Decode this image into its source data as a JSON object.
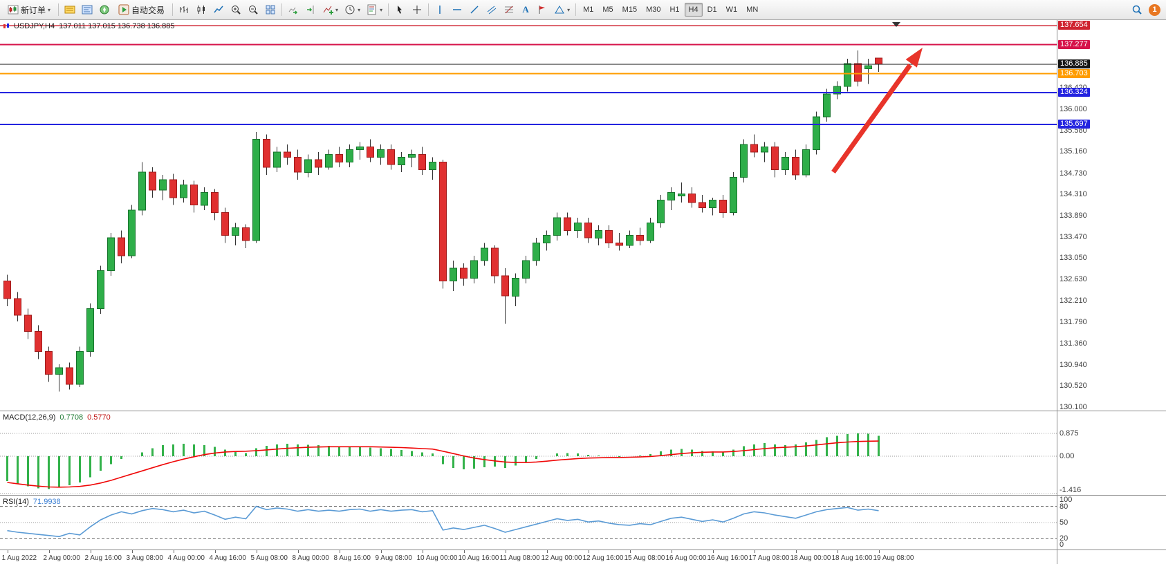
{
  "toolbar": {
    "new_order_label": "新订单",
    "auto_trading_label": "自动交易",
    "timeframes": [
      "M1",
      "M5",
      "M15",
      "M30",
      "H1",
      "H4",
      "D1",
      "W1",
      "MN"
    ],
    "active_timeframe": "H4",
    "notification_badge": "1",
    "text_tool_glyph": "A"
  },
  "chart": {
    "title": "USDJPY,H4",
    "ohlc_text": "137.011 137.015 136.738 136.885",
    "up_color": "#2eae49",
    "up_border": "#17742c",
    "down_color": "#e03030",
    "down_border": "#9f1b1b",
    "wick_color": "#333333",
    "arrow_color": "#e8342a",
    "levels": [
      {
        "price": 137.654,
        "label": "137.654",
        "color": "#cf2330",
        "width": 1.5
      },
      {
        "price": 137.277,
        "label": "137.277",
        "color": "#d6134a",
        "width": 2
      },
      {
        "price": 136.885,
        "label": "136.885",
        "color": "#151515",
        "width": 1
      },
      {
        "price": 136.703,
        "label": "136.703",
        "color": "#ff9c00",
        "width": 2
      },
      {
        "price": 136.324,
        "label": "136.324",
        "color": "#2424e0",
        "width": 2
      },
      {
        "price": 135.697,
        "label": "135.697",
        "color": "#2424e0",
        "width": 2
      }
    ],
    "price_ticks": [
      "136.420",
      "136.000",
      "135.580",
      "135.160",
      "134.730",
      "134.310",
      "133.890",
      "133.470",
      "133.050",
      "132.630",
      "132.210",
      "131.790",
      "131.360",
      "130.940",
      "130.520",
      "130.100"
    ]
  },
  "macd": {
    "label": "MACD(12,26,9)",
    "value_main": "0.7708",
    "value_signal": "0.5770",
    "hist_color": "#33b24a",
    "signal_color": "#f00808",
    "scale_labels": [
      {
        "text": "0.875",
        "value": 0.875
      },
      {
        "text": "0.00",
        "value": 0
      },
      {
        "text": "-1.416",
        "value": -1.416
      }
    ]
  },
  "rsi": {
    "label": "RSI(14)",
    "value": "71.9938",
    "line_color": "#5b9bd5",
    "scale_labels": [
      {
        "text": "100",
        "value": 100
      },
      {
        "text": "80",
        "value": 80
      },
      {
        "text": "50",
        "value": 50
      },
      {
        "text": "20",
        "value": 20
      },
      {
        "text": "0",
        "value": 0
      }
    ],
    "levels": [
      {
        "value": 80,
        "style": "dashed"
      },
      {
        "value": 50,
        "style": "dotted"
      },
      {
        "value": 20,
        "style": "dashed"
      }
    ]
  },
  "chart_data": {
    "type": "candlestick",
    "symbol": "USDJPY",
    "timeframe": "H4",
    "bars_per_label": 4,
    "time_labels": [
      "1 Aug 2022",
      "2 Aug 00:00",
      "2 Aug 16:00",
      "3 Aug 08:00",
      "4 Aug 00:00",
      "4 Aug 16:00",
      "5 Aug 08:00",
      "8 Aug 00:00",
      "8 Aug 16:00",
      "9 Aug 08:00",
      "10 Aug 00:00",
      "10 Aug 16:00",
      "11 Aug 08:00",
      "12 Aug 00:00",
      "12 Aug 16:00",
      "15 Aug 08:00",
      "16 Aug 00:00",
      "16 Aug 16:00",
      "17 Aug 08:00",
      "18 Aug 00:00",
      "18 Aug 16:00",
      "19 Aug 08:00"
    ],
    "candles": [
      [
        132.6,
        132.72,
        132.1,
        132.25
      ],
      [
        132.25,
        132.38,
        131.8,
        131.92
      ],
      [
        131.92,
        132.05,
        131.45,
        131.6
      ],
      [
        131.6,
        131.72,
        131.05,
        131.2
      ],
      [
        131.2,
        131.3,
        130.6,
        130.75
      ],
      [
        130.75,
        130.95,
        130.41,
        130.88
      ],
      [
        130.88,
        130.98,
        130.45,
        130.55
      ],
      [
        130.55,
        131.3,
        130.5,
        131.2
      ],
      [
        131.2,
        132.15,
        131.1,
        132.05
      ],
      [
        132.05,
        132.9,
        131.95,
        132.8
      ],
      [
        132.8,
        133.55,
        132.7,
        133.45
      ],
      [
        133.45,
        133.6,
        132.95,
        133.1
      ],
      [
        133.1,
        134.1,
        133.05,
        134.0
      ],
      [
        134.0,
        134.95,
        133.9,
        134.75
      ],
      [
        134.75,
        134.85,
        134.25,
        134.4
      ],
      [
        134.4,
        134.7,
        134.2,
        134.6
      ],
      [
        134.6,
        134.72,
        134.1,
        134.25
      ],
      [
        134.25,
        134.6,
        134.15,
        134.5
      ],
      [
        134.5,
        134.58,
        133.95,
        134.1
      ],
      [
        134.1,
        134.45,
        134.0,
        134.35
      ],
      [
        134.35,
        134.42,
        133.8,
        133.95
      ],
      [
        133.95,
        134.05,
        133.35,
        133.5
      ],
      [
        133.5,
        133.75,
        133.3,
        133.65
      ],
      [
        133.65,
        133.72,
        133.25,
        133.4
      ],
      [
        133.4,
        135.55,
        133.35,
        135.4
      ],
      [
        135.4,
        135.5,
        134.7,
        134.85
      ],
      [
        134.85,
        135.25,
        134.75,
        135.15
      ],
      [
        135.15,
        135.3,
        134.9,
        135.05
      ],
      [
        135.05,
        135.2,
        134.6,
        134.75
      ],
      [
        134.75,
        135.1,
        134.65,
        135.0
      ],
      [
        135.0,
        135.15,
        134.7,
        134.85
      ],
      [
        134.85,
        135.2,
        134.8,
        135.1
      ],
      [
        135.1,
        135.25,
        134.85,
        134.95
      ],
      [
        134.95,
        135.3,
        134.85,
        135.2
      ],
      [
        135.2,
        135.35,
        135.0,
        135.25
      ],
      [
        135.25,
        135.4,
        134.95,
        135.05
      ],
      [
        135.05,
        135.3,
        134.9,
        135.2
      ],
      [
        135.2,
        135.3,
        134.8,
        134.9
      ],
      [
        134.9,
        135.15,
        134.75,
        135.05
      ],
      [
        135.05,
        135.2,
        134.85,
        135.1
      ],
      [
        135.1,
        135.25,
        134.7,
        134.8
      ],
      [
        134.8,
        135.05,
        134.6,
        134.95
      ],
      [
        134.95,
        135.0,
        132.45,
        132.6
      ],
      [
        132.6,
        133.0,
        132.4,
        132.85
      ],
      [
        132.85,
        132.95,
        132.5,
        132.65
      ],
      [
        132.65,
        133.1,
        132.55,
        133.0
      ],
      [
        133.0,
        133.35,
        132.9,
        133.25
      ],
      [
        133.25,
        133.3,
        132.55,
        132.7
      ],
      [
        132.7,
        132.85,
        131.75,
        132.3
      ],
      [
        132.3,
        132.75,
        132.1,
        132.65
      ],
      [
        132.65,
        133.1,
        132.55,
        133.0
      ],
      [
        133.0,
        133.45,
        132.9,
        133.35
      ],
      [
        133.35,
        133.6,
        133.2,
        133.5
      ],
      [
        133.5,
        133.95,
        133.4,
        133.85
      ],
      [
        133.85,
        133.95,
        133.5,
        133.6
      ],
      [
        133.6,
        133.85,
        133.45,
        133.75
      ],
      [
        133.75,
        133.85,
        133.35,
        133.45
      ],
      [
        133.45,
        133.7,
        133.3,
        133.6
      ],
      [
        133.6,
        133.7,
        133.25,
        133.35
      ],
      [
        133.35,
        133.55,
        133.2,
        133.3
      ],
      [
        133.3,
        133.6,
        133.25,
        133.5
      ],
      [
        133.5,
        133.65,
        133.3,
        133.4
      ],
      [
        133.4,
        133.85,
        133.35,
        133.75
      ],
      [
        133.75,
        134.3,
        133.65,
        134.2
      ],
      [
        134.2,
        134.45,
        134.0,
        134.35
      ],
      [
        134.28,
        134.55,
        134.15,
        134.32
      ],
      [
        134.32,
        134.45,
        134.05,
        134.15
      ],
      [
        134.15,
        134.3,
        133.95,
        134.05
      ],
      [
        134.05,
        134.25,
        133.9,
        134.2
      ],
      [
        134.2,
        134.3,
        133.85,
        133.95
      ],
      [
        133.95,
        134.75,
        133.9,
        134.65
      ],
      [
        134.65,
        135.4,
        134.55,
        135.3
      ],
      [
        135.3,
        135.5,
        135.05,
        135.15
      ],
      [
        135.15,
        135.35,
        134.95,
        135.25
      ],
      [
        135.25,
        135.35,
        134.65,
        134.8
      ],
      [
        134.8,
        135.15,
        134.7,
        135.05
      ],
      [
        135.05,
        135.2,
        134.6,
        134.7
      ],
      [
        134.7,
        135.3,
        134.65,
        135.2
      ],
      [
        135.2,
        135.95,
        135.1,
        135.85
      ],
      [
        135.85,
        136.4,
        135.75,
        136.3
      ],
      [
        136.3,
        136.55,
        136.2,
        136.45
      ],
      [
        136.45,
        137.0,
        136.35,
        136.9
      ],
      [
        136.9,
        137.16,
        136.45,
        136.55
      ],
      [
        136.8,
        137.0,
        136.5,
        136.86
      ],
      [
        137.011,
        137.015,
        136.738,
        136.885
      ]
    ],
    "macd_histogram": [
      -0.95,
      -1.05,
      -1.15,
      -1.22,
      -1.25,
      -1.2,
      -1.1,
      -1.0,
      -0.8,
      -0.55,
      -0.3,
      -0.1,
      0.0,
      0.15,
      0.3,
      0.42,
      0.45,
      0.48,
      0.45,
      0.42,
      0.35,
      0.25,
      0.18,
      0.12,
      0.3,
      0.4,
      0.45,
      0.48,
      0.45,
      0.44,
      0.42,
      0.4,
      0.38,
      0.36,
      0.35,
      0.33,
      0.3,
      0.27,
      0.24,
      0.2,
      0.15,
      0.1,
      -0.3,
      -0.45,
      -0.5,
      -0.48,
      -0.42,
      -0.4,
      -0.45,
      -0.35,
      -0.22,
      -0.1,
      0.0,
      0.1,
      0.12,
      0.1,
      0.05,
      0.02,
      0.0,
      -0.02,
      0.0,
      0.02,
      0.08,
      0.18,
      0.25,
      0.28,
      0.25,
      0.2,
      0.18,
      0.15,
      0.25,
      0.38,
      0.45,
      0.5,
      0.45,
      0.42,
      0.45,
      0.52,
      0.62,
      0.72,
      0.78,
      0.84,
      0.875,
      0.85,
      0.7708
    ],
    "macd_signal": [
      -1.0,
      -1.05,
      -1.1,
      -1.14,
      -1.17,
      -1.18,
      -1.17,
      -1.15,
      -1.1,
      -1.02,
      -0.92,
      -0.8,
      -0.68,
      -0.56,
      -0.44,
      -0.32,
      -0.21,
      -0.11,
      -0.02,
      0.06,
      0.12,
      0.16,
      0.18,
      0.19,
      0.21,
      0.24,
      0.27,
      0.3,
      0.32,
      0.34,
      0.35,
      0.36,
      0.36,
      0.36,
      0.36,
      0.36,
      0.35,
      0.34,
      0.33,
      0.31,
      0.29,
      0.27,
      0.19,
      0.1,
      0.01,
      -0.07,
      -0.13,
      -0.18,
      -0.22,
      -0.24,
      -0.24,
      -0.22,
      -0.19,
      -0.15,
      -0.12,
      -0.09,
      -0.07,
      -0.06,
      -0.05,
      -0.05,
      -0.04,
      -0.03,
      -0.01,
      0.02,
      0.06,
      0.1,
      0.13,
      0.15,
      0.16,
      0.16,
      0.18,
      0.21,
      0.25,
      0.29,
      0.32,
      0.34,
      0.36,
      0.39,
      0.43,
      0.47,
      0.51,
      0.54,
      0.56,
      0.57,
      0.577
    ],
    "rsi": [
      35,
      32,
      30,
      28,
      26,
      24,
      30,
      27,
      42,
      55,
      64,
      70,
      66,
      72,
      76,
      74,
      70,
      73,
      68,
      71,
      64,
      56,
      60,
      57,
      80,
      74,
      77,
      75,
      71,
      74,
      71,
      73,
      71,
      74,
      75,
      71,
      74,
      71,
      73,
      74,
      70,
      72,
      36,
      40,
      37,
      41,
      45,
      39,
      32,
      37,
      42,
      47,
      52,
      57,
      54,
      56,
      51,
      53,
      49,
      46,
      45,
      48,
      46,
      52,
      58,
      60,
      56,
      52,
      55,
      51,
      58,
      66,
      70,
      68,
      64,
      61,
      58,
      64,
      70,
      74,
      76,
      78,
      73,
      75,
      71.99
    ]
  }
}
